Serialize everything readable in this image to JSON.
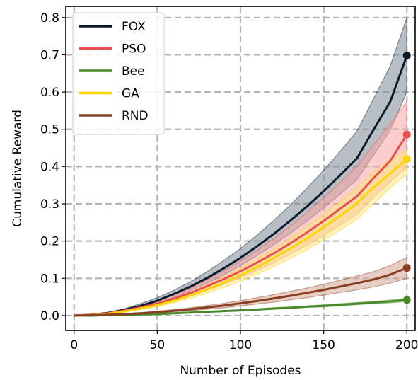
{
  "chart_data": {
    "type": "line",
    "xlabel": "Number of Episodes",
    "ylabel": "Cumulative Reward",
    "xlim": [
      -5,
      205
    ],
    "ylim": [
      -0.04,
      0.83
    ],
    "xticks": [
      0,
      50,
      100,
      150,
      200
    ],
    "yticks": [
      0.0,
      0.1,
      0.2,
      0.3,
      0.4,
      0.5,
      0.6,
      0.7,
      0.8
    ],
    "xtick_labels": [
      "0",
      "50",
      "100",
      "150",
      "200"
    ],
    "ytick_labels": [
      "0.0",
      "0.1",
      "0.2",
      "0.3",
      "0.4",
      "0.5",
      "0.6",
      "0.7",
      "0.8"
    ],
    "grid": true,
    "legend_position": "top-left",
    "x": [
      0,
      10,
      20,
      30,
      40,
      50,
      60,
      70,
      80,
      90,
      100,
      110,
      120,
      130,
      140,
      150,
      160,
      170,
      180,
      190,
      200
    ],
    "series": [
      {
        "name": "FOX",
        "color": "#0b1a2b",
        "band_color": "#7e8a94",
        "values": [
          0.0,
          0.002,
          0.007,
          0.015,
          0.026,
          0.04,
          0.058,
          0.078,
          0.101,
          0.127,
          0.155,
          0.186,
          0.219,
          0.255,
          0.293,
          0.334,
          0.377,
          0.422,
          0.499,
          0.574,
          0.698
        ],
        "upper": [
          0.0,
          0.002,
          0.008,
          0.018,
          0.032,
          0.048,
          0.068,
          0.091,
          0.118,
          0.148,
          0.18,
          0.216,
          0.255,
          0.297,
          0.342,
          0.39,
          0.441,
          0.495,
          0.582,
          0.67,
          0.8
        ],
        "lower": [
          0.0,
          0.001,
          0.006,
          0.013,
          0.022,
          0.034,
          0.049,
          0.067,
          0.087,
          0.109,
          0.134,
          0.161,
          0.19,
          0.221,
          0.254,
          0.289,
          0.326,
          0.365,
          0.431,
          0.497,
          0.6
        ]
      },
      {
        "name": "PSO",
        "color": "#e94f4f",
        "band_color": "#f7a6a6",
        "values": [
          0.0,
          0.002,
          0.006,
          0.013,
          0.022,
          0.032,
          0.045,
          0.061,
          0.079,
          0.098,
          0.119,
          0.142,
          0.167,
          0.194,
          0.223,
          0.254,
          0.287,
          0.32,
          0.369,
          0.415,
          0.486
        ],
        "upper": [
          0.0,
          0.002,
          0.007,
          0.015,
          0.026,
          0.039,
          0.055,
          0.074,
          0.096,
          0.12,
          0.146,
          0.175,
          0.206,
          0.24,
          0.277,
          0.316,
          0.357,
          0.4,
          0.458,
          0.513,
          0.575
        ],
        "lower": [
          0.0,
          0.001,
          0.005,
          0.011,
          0.019,
          0.028,
          0.039,
          0.052,
          0.067,
          0.084,
          0.102,
          0.121,
          0.142,
          0.165,
          0.189,
          0.215,
          0.243,
          0.272,
          0.318,
          0.358,
          0.4
        ]
      },
      {
        "name": "Bee",
        "color": "#4a8a2a",
        "band_color": "#9fc98a",
        "values": [
          0.0,
          0.0,
          0.001,
          0.002,
          0.003,
          0.004,
          0.006,
          0.008,
          0.01,
          0.012,
          0.014,
          0.016,
          0.019,
          0.021,
          0.024,
          0.026,
          0.029,
          0.032,
          0.035,
          0.038,
          0.042
        ],
        "upper": [
          0.0,
          0.0,
          0.001,
          0.002,
          0.003,
          0.005,
          0.007,
          0.009,
          0.011,
          0.013,
          0.016,
          0.018,
          0.021,
          0.023,
          0.026,
          0.029,
          0.032,
          0.035,
          0.038,
          0.042,
          0.046
        ],
        "lower": [
          0.0,
          0.0,
          0.001,
          0.001,
          0.002,
          0.004,
          0.005,
          0.007,
          0.009,
          0.011,
          0.012,
          0.014,
          0.017,
          0.019,
          0.022,
          0.023,
          0.026,
          0.029,
          0.032,
          0.034,
          0.038
        ]
      },
      {
        "name": "GA",
        "color": "#ffd400",
        "band_color": "#ffe680",
        "values": [
          0.0,
          0.001,
          0.005,
          0.011,
          0.019,
          0.028,
          0.04,
          0.054,
          0.07,
          0.088,
          0.108,
          0.13,
          0.154,
          0.18,
          0.207,
          0.237,
          0.268,
          0.301,
          0.344,
          0.381,
          0.42
        ],
        "upper": [
          0.0,
          0.002,
          0.006,
          0.013,
          0.022,
          0.033,
          0.047,
          0.063,
          0.082,
          0.103,
          0.126,
          0.151,
          0.178,
          0.207,
          0.238,
          0.271,
          0.305,
          0.341,
          0.384,
          0.418,
          0.445
        ],
        "lower": [
          0.0,
          0.001,
          0.004,
          0.009,
          0.016,
          0.024,
          0.034,
          0.046,
          0.06,
          0.075,
          0.092,
          0.111,
          0.131,
          0.153,
          0.177,
          0.202,
          0.229,
          0.258,
          0.3,
          0.343,
          0.38
        ]
      },
      {
        "name": "RND",
        "color": "#8a3e22",
        "band_color": "#d4a594",
        "values": [
          0.0,
          0.001,
          0.002,
          0.004,
          0.006,
          0.009,
          0.013,
          0.017,
          0.022,
          0.027,
          0.033,
          0.039,
          0.046,
          0.053,
          0.061,
          0.069,
          0.078,
          0.087,
          0.097,
          0.11,
          0.128
        ],
        "upper": [
          0.0,
          0.001,
          0.003,
          0.005,
          0.008,
          0.012,
          0.016,
          0.021,
          0.027,
          0.033,
          0.04,
          0.048,
          0.056,
          0.065,
          0.074,
          0.084,
          0.095,
          0.106,
          0.118,
          0.134,
          0.156
        ],
        "lower": [
          0.0,
          0.0,
          0.002,
          0.003,
          0.005,
          0.007,
          0.01,
          0.013,
          0.017,
          0.021,
          0.026,
          0.031,
          0.036,
          0.042,
          0.048,
          0.055,
          0.062,
          0.069,
          0.077,
          0.087,
          0.1
        ]
      }
    ]
  }
}
